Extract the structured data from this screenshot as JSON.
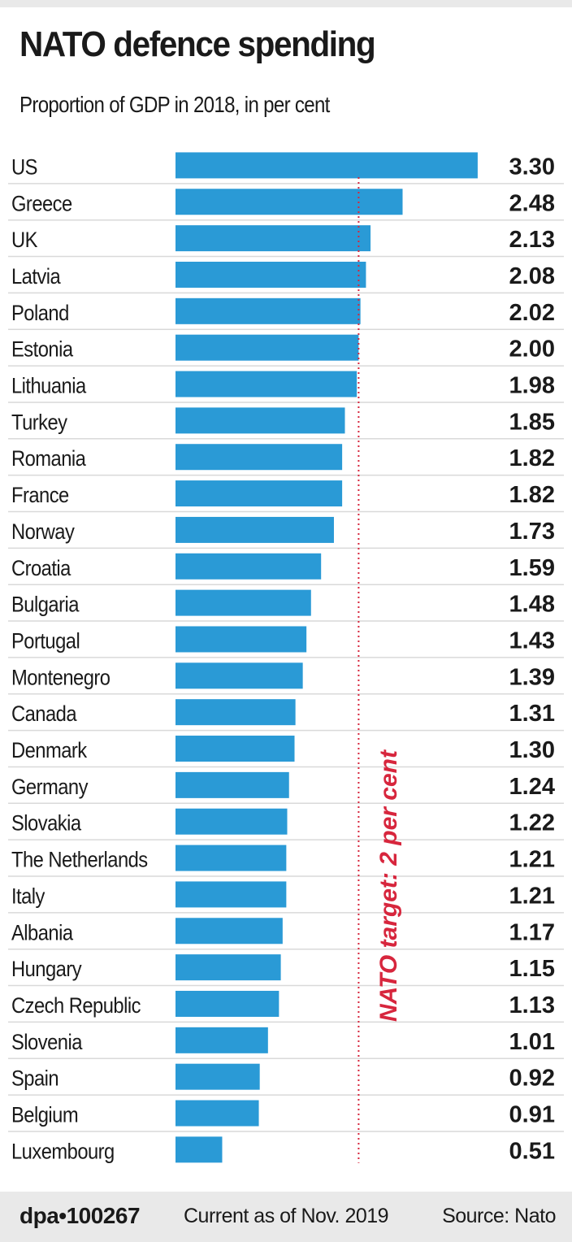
{
  "chart_data": {
    "type": "bar",
    "orientation": "horizontal",
    "title": "NATO defence spending",
    "subtitle": "Proportion of GDP in 2018, in per cent",
    "categories": [
      "US",
      "Greece",
      "UK",
      "Latvia",
      "Poland",
      "Estonia",
      "Lithuania",
      "Turkey",
      "Romania",
      "France",
      "Norway",
      "Croatia",
      "Bulgaria",
      "Portugal",
      "Montenegro",
      "Canada",
      "Denmark",
      "Germany",
      "Slovakia",
      "The Netherlands",
      "Italy",
      "Albania",
      "Hungary",
      "Czech Republic",
      "Slovenia",
      "Spain",
      "Belgium",
      "Luxembourg"
    ],
    "values": [
      3.3,
      2.48,
      2.13,
      2.08,
      2.02,
      2.0,
      1.98,
      1.85,
      1.82,
      1.82,
      1.73,
      1.59,
      1.48,
      1.43,
      1.39,
      1.31,
      1.3,
      1.24,
      1.22,
      1.21,
      1.21,
      1.17,
      1.15,
      1.13,
      1.01,
      0.92,
      0.91,
      0.51
    ],
    "value_labels": [
      "3.30",
      "2.48",
      "2.13",
      "2.08",
      "2.02",
      "2.00",
      "1.98",
      "1.85",
      "1.82",
      "1.82",
      "1.73",
      "1.59",
      "1.48",
      "1.43",
      "1.39",
      "1.31",
      "1.30",
      "1.24",
      "1.22",
      "1.21",
      "1.21",
      "1.17",
      "1.15",
      "1.13",
      "1.01",
      "0.92",
      "0.91",
      "0.51"
    ],
    "xlim": [
      0,
      3.3
    ],
    "reference_line": {
      "value": 2.0,
      "label": "NATO target: 2 per cent",
      "color": "#d7263d",
      "style": "dotted"
    },
    "bar_color": "#2a9ad6",
    "grid": false,
    "legend": "none"
  },
  "footer": {
    "brand": "dpa•100267",
    "date": "Current as of Nov. 2019",
    "source": "Source: Nato"
  },
  "colors": {
    "bar": "#2a9ad6",
    "target_line": "#d7263d",
    "footer_bg": "#e9e9e9",
    "separator": "#d9d9d9"
  }
}
